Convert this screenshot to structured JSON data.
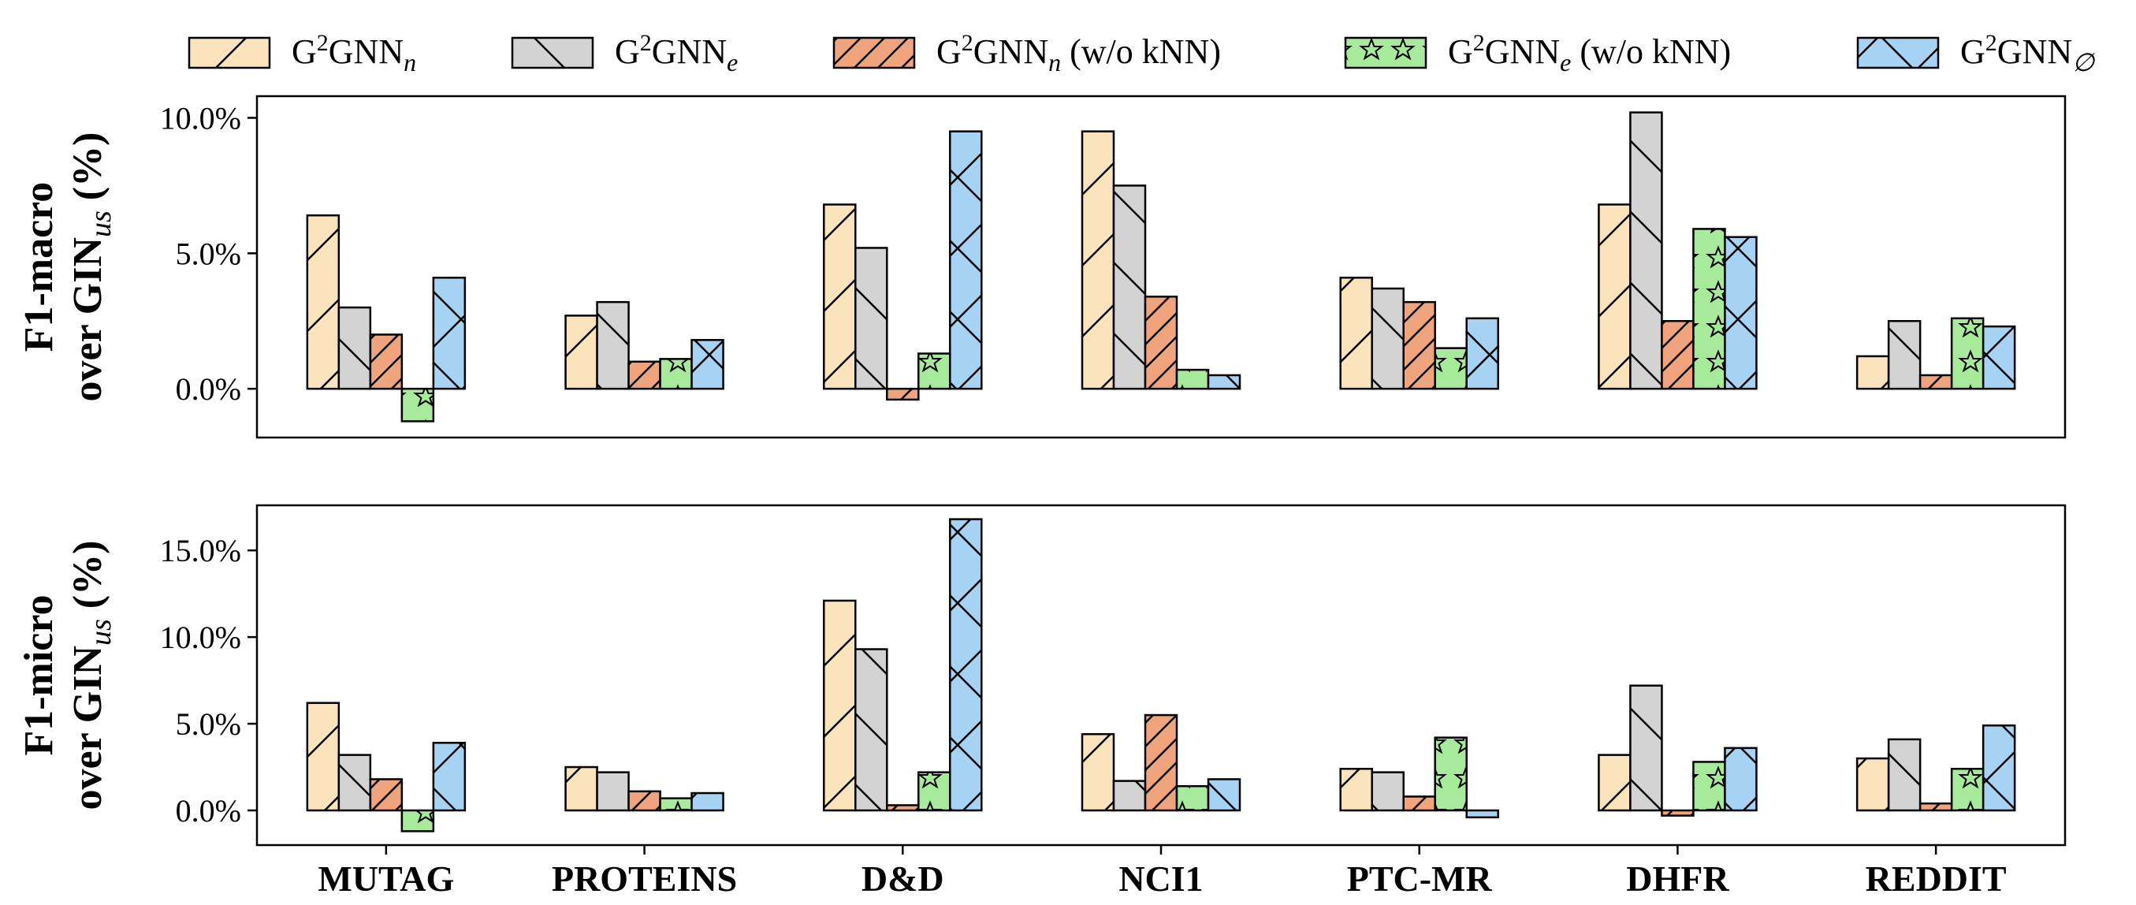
{
  "chart_data": {
    "type": "bar",
    "categories": [
      "MUTAG",
      "PROTEINS",
      "D&D",
      "NCI1",
      "PTC-MR",
      "DHFR",
      "REDDIT"
    ],
    "series": [
      {
        "name": "G²GNNₙ",
        "legend_base": "G",
        "legend_sup": "2",
        "legend_mid": "GNN",
        "legend_sub": "n",
        "legend_suffix": "",
        "color": "#fbe3bb",
        "hatch": "slash"
      },
      {
        "name": "G²GNNₑ",
        "legend_base": "G",
        "legend_sup": "2",
        "legend_mid": "GNN",
        "legend_sub": "e",
        "legend_suffix": "",
        "color": "#d3d3d3",
        "hatch": "backslash"
      },
      {
        "name": "G²GNNₙ (w/o kNN)",
        "legend_base": "G",
        "legend_sup": "2",
        "legend_mid": "GNN",
        "legend_sub": "n",
        "legend_suffix": " (w/o kNN)",
        "color": "#f0a47e",
        "hatch": "dense-slash"
      },
      {
        "name": "G²GNNₑ (w/o kNN)",
        "legend_base": "G",
        "legend_sup": "2",
        "legend_mid": "GNN",
        "legend_sub": "e",
        "legend_suffix": " (w/o kNN)",
        "color": "#a8ea9c",
        "hatch": "star"
      },
      {
        "name": "G²GNN∅",
        "legend_base": "G",
        "legend_sup": "2",
        "legend_mid": "GNN",
        "legend_sub": "∅",
        "legend_suffix": "",
        "color": "#a6d2f4",
        "hatch": "cross"
      }
    ],
    "panels": [
      {
        "ylabel_line1": "F1-macro",
        "ylabel_line2_pre": "over GIN",
        "ylabel_line2_sub": "us",
        "ylabel_line2_post": " (%)",
        "ylim": [
          -1.8,
          10.8
        ],
        "yticks": [
          0,
          5,
          10
        ],
        "ytick_labels": [
          "0.0%",
          "5.0%",
          "10.0%"
        ],
        "values": [
          [
            6.4,
            3.0,
            2.0,
            -1.2,
            4.1
          ],
          [
            2.7,
            3.2,
            1.0,
            1.1,
            1.8
          ],
          [
            6.8,
            5.2,
            -0.4,
            1.3,
            9.5
          ],
          [
            9.5,
            7.5,
            3.4,
            0.7,
            0.5
          ],
          [
            4.1,
            3.7,
            3.2,
            1.5,
            2.6
          ],
          [
            6.8,
            10.2,
            2.5,
            5.9,
            5.6
          ],
          [
            1.2,
            2.5,
            0.5,
            2.6,
            2.3
          ]
        ]
      },
      {
        "ylabel_line1": "F1-micro",
        "ylabel_line2_pre": "over GIN",
        "ylabel_line2_sub": "us",
        "ylabel_line2_post": " (%)",
        "ylim": [
          -2.0,
          17.6
        ],
        "yticks": [
          0,
          5,
          10,
          15
        ],
        "ytick_labels": [
          "0.0%",
          "5.0%",
          "10.0%",
          "15.0%"
        ],
        "values": [
          [
            6.2,
            3.2,
            1.8,
            -1.2,
            3.9
          ],
          [
            2.5,
            2.2,
            1.1,
            0.7,
            1.0
          ],
          [
            12.1,
            9.3,
            0.3,
            2.2,
            16.8
          ],
          [
            4.4,
            1.7,
            5.5,
            1.4,
            1.8
          ],
          [
            2.4,
            2.2,
            0.8,
            4.2,
            -0.4
          ],
          [
            3.2,
            7.2,
            -0.3,
            2.8,
            3.6
          ],
          [
            3.0,
            4.1,
            0.4,
            2.4,
            4.9
          ]
        ]
      }
    ],
    "grid": false,
    "legend_position": "top"
  }
}
